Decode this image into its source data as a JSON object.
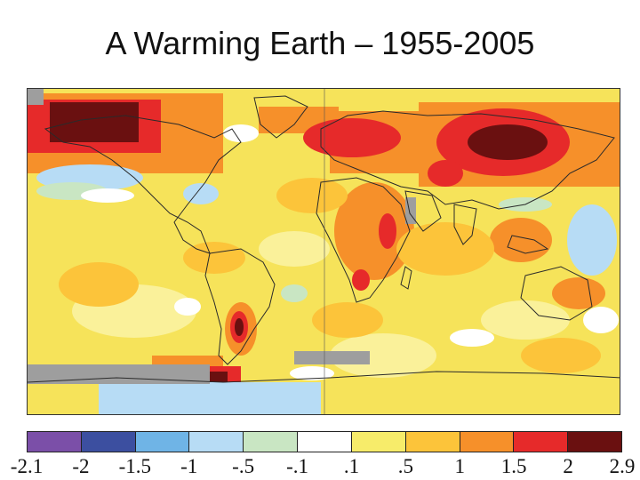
{
  "title": "A Warming Earth – 1955-2005",
  "legend": {
    "colors": [
      "#7b4fa8",
      "#3c4fa0",
      "#6fb4e6",
      "#b7dcf5",
      "#c9e6c3",
      "#ffffff",
      "#f7ec6a",
      "#fcc43a",
      "#f6902a",
      "#e62a2a",
      "#6a1010"
    ],
    "ticks": [
      "-2.1",
      "-2",
      "-1.5",
      "-1",
      "-.5",
      "-.1",
      ".1",
      ".5",
      "1",
      "1.5",
      "2",
      "2.9"
    ]
  },
  "map": {
    "no_data_color": "#9e9e9e",
    "coastline_color": "#2a2a2a"
  }
}
